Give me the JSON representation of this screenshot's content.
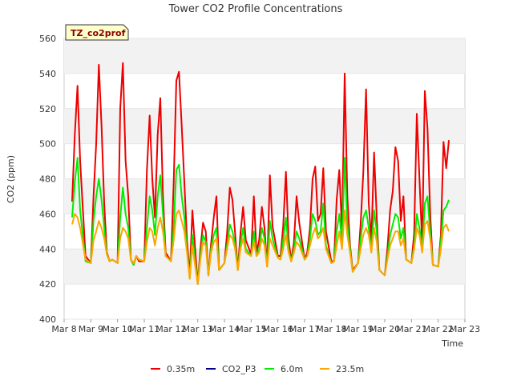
{
  "chart_data": {
    "type": "line",
    "title": "Tower CO2 Profile Concentrations",
    "badge": "TZ_co2prof",
    "xlabel": "Time",
    "ylabel": "CO2 (ppm)",
    "ylim": [
      400,
      560
    ],
    "yticks": [
      400,
      420,
      440,
      460,
      480,
      500,
      520,
      540,
      560
    ],
    "xlim": [
      0,
      15
    ],
    "xticks": [
      {
        "x": 0,
        "label": "Mar 8"
      },
      {
        "x": 1,
        "label": "Mar 9"
      },
      {
        "x": 2,
        "label": "Mar 10"
      },
      {
        "x": 3,
        "label": "Mar 11"
      },
      {
        "x": 4,
        "label": "Mar 12"
      },
      {
        "x": 5,
        "label": "Mar 13"
      },
      {
        "x": 6,
        "label": "Mar 14"
      },
      {
        "x": 7,
        "label": "Mar 15"
      },
      {
        "x": 8,
        "label": "Mar 16"
      },
      {
        "x": 9,
        "label": "Mar 17"
      },
      {
        "x": 10,
        "label": "Mar 18"
      },
      {
        "x": 11,
        "label": "Mar 19"
      },
      {
        "x": 12,
        "label": "Mar 20"
      },
      {
        "x": 13,
        "label": "Mar 21"
      },
      {
        "x": 14,
        "label": "Mar 22"
      },
      {
        "x": 15,
        "label": "Mar 23"
      }
    ],
    "series": [
      {
        "name": "0.35m",
        "color": "#ee0000",
        "x": [
          0.3,
          0.4,
          0.5,
          0.6,
          0.8,
          1.0,
          1.1,
          1.2,
          1.3,
          1.4,
          1.5,
          1.6,
          1.7,
          1.8,
          2.0,
          2.1,
          2.2,
          2.3,
          2.4,
          2.5,
          2.6,
          2.7,
          2.8,
          3.0,
          3.1,
          3.2,
          3.3,
          3.4,
          3.5,
          3.6,
          3.7,
          3.8,
          4.0,
          4.1,
          4.2,
          4.3,
          4.4,
          4.5,
          4.6,
          4.7,
          4.8,
          5.0,
          5.1,
          5.2,
          5.3,
          5.4,
          5.5,
          5.6,
          5.7,
          5.8,
          6.0,
          6.1,
          6.2,
          6.3,
          6.4,
          6.5,
          6.6,
          6.7,
          6.8,
          7.0,
          7.1,
          7.2,
          7.3,
          7.4,
          7.5,
          7.6,
          7.7,
          7.8,
          8.0,
          8.1,
          8.2,
          8.3,
          8.4,
          8.5,
          8.6,
          8.7,
          8.8,
          9.0,
          9.1,
          9.2,
          9.3,
          9.4,
          9.5,
          9.6,
          9.7,
          9.8,
          10.0,
          10.1,
          10.2,
          10.3,
          10.4,
          10.5,
          10.6,
          10.7,
          10.8,
          11.0,
          11.1,
          11.2,
          11.3,
          11.4,
          11.5,
          11.6,
          11.7,
          11.8,
          12.0,
          12.1,
          12.2,
          12.3,
          12.4,
          12.5,
          12.6,
          12.7,
          12.8,
          13.0,
          13.1,
          13.2,
          13.3,
          13.4,
          13.5,
          13.6,
          13.7,
          13.8,
          14.0,
          14.1,
          14.2,
          14.3,
          14.4
        ],
        "values": [
          467,
          505,
          533,
          490,
          436,
          432,
          470,
          500,
          545,
          510,
          466,
          438,
          433,
          434,
          432,
          520,
          546,
          490,
          470,
          434,
          431,
          436,
          433,
          433,
          485,
          516,
          480,
          458,
          505,
          526,
          470,
          438,
          433,
          478,
          536,
          541,
          510,
          478,
          445,
          425,
          462,
          420,
          440,
          455,
          450,
          425,
          443,
          458,
          470,
          428,
          432,
          449,
          475,
          468,
          449,
          428,
          449,
          464,
          445,
          437,
          470,
          438,
          445,
          464,
          452,
          430,
          482,
          453,
          436,
          436,
          453,
          484,
          446,
          433,
          444,
          470,
          455,
          434,
          438,
          452,
          480,
          487,
          456,
          460,
          486,
          450,
          433,
          433,
          468,
          485,
          450,
          540,
          470,
          442,
          428,
          432,
          455,
          484,
          531,
          466,
          445,
          495,
          458,
          428,
          425,
          440,
          462,
          473,
          498,
          490,
          456,
          470,
          434,
          432,
          449,
          517,
          480,
          443,
          530,
          509,
          460,
          431,
          430,
          448,
          501,
          486,
          502
        ]
      },
      {
        "name": "CO2_P3",
        "color": "#00008b",
        "x": [],
        "values": []
      },
      {
        "name": "6.0m",
        "color": "#00ee00",
        "x": [
          0.3,
          0.4,
          0.5,
          0.6,
          0.8,
          1.0,
          1.1,
          1.2,
          1.3,
          1.4,
          1.5,
          1.6,
          1.7,
          1.8,
          2.0,
          2.1,
          2.2,
          2.3,
          2.4,
          2.5,
          2.6,
          2.7,
          2.8,
          3.0,
          3.1,
          3.2,
          3.3,
          3.4,
          3.5,
          3.6,
          3.7,
          3.8,
          4.0,
          4.1,
          4.2,
          4.3,
          4.4,
          4.5,
          4.6,
          4.7,
          4.8,
          5.0,
          5.1,
          5.2,
          5.3,
          5.4,
          5.5,
          5.6,
          5.7,
          5.8,
          6.0,
          6.1,
          6.2,
          6.3,
          6.4,
          6.5,
          6.6,
          6.7,
          6.8,
          7.0,
          7.1,
          7.2,
          7.3,
          7.4,
          7.5,
          7.6,
          7.7,
          7.8,
          8.0,
          8.1,
          8.2,
          8.3,
          8.4,
          8.5,
          8.6,
          8.7,
          8.8,
          9.0,
          9.1,
          9.2,
          9.3,
          9.4,
          9.5,
          9.6,
          9.7,
          9.8,
          10.0,
          10.1,
          10.2,
          10.3,
          10.4,
          10.5,
          10.6,
          10.7,
          10.8,
          11.0,
          11.1,
          11.2,
          11.3,
          11.4,
          11.5,
          11.6,
          11.7,
          11.8,
          12.0,
          12.1,
          12.2,
          12.3,
          12.4,
          12.5,
          12.6,
          12.7,
          12.8,
          13.0,
          13.1,
          13.2,
          13.3,
          13.4,
          13.5,
          13.6,
          13.7,
          13.8,
          14.0,
          14.1,
          14.2,
          14.3,
          14.4
        ],
        "values": [
          458,
          478,
          492,
          462,
          433,
          432,
          456,
          470,
          480,
          468,
          452,
          437,
          433,
          434,
          432,
          458,
          475,
          460,
          452,
          434,
          431,
          436,
          434,
          433,
          452,
          470,
          462,
          448,
          470,
          482,
          460,
          436,
          433,
          453,
          485,
          488,
          470,
          458,
          440,
          423,
          448,
          420,
          436,
          448,
          444,
          425,
          440,
          448,
          452,
          428,
          432,
          442,
          454,
          450,
          443,
          428,
          443,
          452,
          440,
          436,
          450,
          436,
          440,
          452,
          446,
          430,
          456,
          446,
          435,
          434,
          445,
          458,
          440,
          433,
          440,
          450,
          446,
          434,
          436,
          446,
          460,
          456,
          448,
          450,
          466,
          442,
          432,
          433,
          450,
          460,
          444,
          492,
          455,
          440,
          427,
          432,
          446,
          458,
          462,
          452,
          440,
          462,
          450,
          428,
          425,
          436,
          448,
          454,
          460,
          458,
          446,
          452,
          434,
          432,
          442,
          460,
          452,
          440,
          466,
          470,
          450,
          431,
          430,
          444,
          462,
          464,
          468
        ]
      },
      {
        "name": "23.5m",
        "color": "#ffa500",
        "x": [
          0.3,
          0.4,
          0.5,
          0.6,
          0.8,
          1.0,
          1.1,
          1.2,
          1.3,
          1.4,
          1.5,
          1.6,
          1.7,
          1.8,
          2.0,
          2.1,
          2.2,
          2.3,
          2.4,
          2.5,
          2.6,
          2.7,
          2.8,
          3.0,
          3.1,
          3.2,
          3.3,
          3.4,
          3.5,
          3.6,
          3.7,
          3.8,
          4.0,
          4.1,
          4.2,
          4.3,
          4.4,
          4.5,
          4.6,
          4.7,
          4.8,
          5.0,
          5.1,
          5.2,
          5.3,
          5.4,
          5.5,
          5.6,
          5.7,
          5.8,
          6.0,
          6.1,
          6.2,
          6.3,
          6.4,
          6.5,
          6.6,
          6.7,
          6.8,
          7.0,
          7.1,
          7.2,
          7.3,
          7.4,
          7.5,
          7.6,
          7.7,
          7.8,
          8.0,
          8.1,
          8.2,
          8.3,
          8.4,
          8.5,
          8.6,
          8.7,
          8.8,
          9.0,
          9.1,
          9.2,
          9.3,
          9.4,
          9.5,
          9.6,
          9.7,
          9.8,
          10.0,
          10.1,
          10.2,
          10.3,
          10.4,
          10.5,
          10.6,
          10.7,
          10.8,
          11.0,
          11.1,
          11.2,
          11.3,
          11.4,
          11.5,
          11.6,
          11.7,
          11.8,
          12.0,
          12.1,
          12.2,
          12.3,
          12.4,
          12.5,
          12.6,
          12.7,
          12.8,
          13.0,
          13.1,
          13.2,
          13.3,
          13.4,
          13.5,
          13.6,
          13.7,
          13.8,
          14.0,
          14.1,
          14.2,
          14.3,
          14.4
        ],
        "values": [
          454,
          460,
          458,
          452,
          434,
          432,
          445,
          450,
          456,
          452,
          446,
          437,
          433,
          434,
          432,
          446,
          452,
          450,
          446,
          434,
          432,
          436,
          434,
          433,
          444,
          452,
          450,
          442,
          452,
          458,
          450,
          436,
          433,
          445,
          460,
          462,
          456,
          450,
          438,
          423,
          442,
          420,
          434,
          444,
          442,
          425,
          438,
          444,
          446,
          428,
          432,
          440,
          448,
          446,
          440,
          428,
          440,
          446,
          438,
          436,
          444,
          436,
          438,
          446,
          442,
          430,
          446,
          442,
          435,
          434,
          440,
          448,
          438,
          433,
          438,
          444,
          442,
          434,
          436,
          442,
          448,
          452,
          446,
          448,
          452,
          440,
          432,
          433,
          442,
          450,
          440,
          462,
          448,
          438,
          427,
          432,
          440,
          448,
          452,
          448,
          438,
          452,
          444,
          428,
          425,
          434,
          442,
          446,
          450,
          450,
          442,
          446,
          434,
          432,
          440,
          452,
          448,
          438,
          454,
          456,
          446,
          431,
          430,
          440,
          452,
          454,
          450
        ]
      }
    ]
  }
}
